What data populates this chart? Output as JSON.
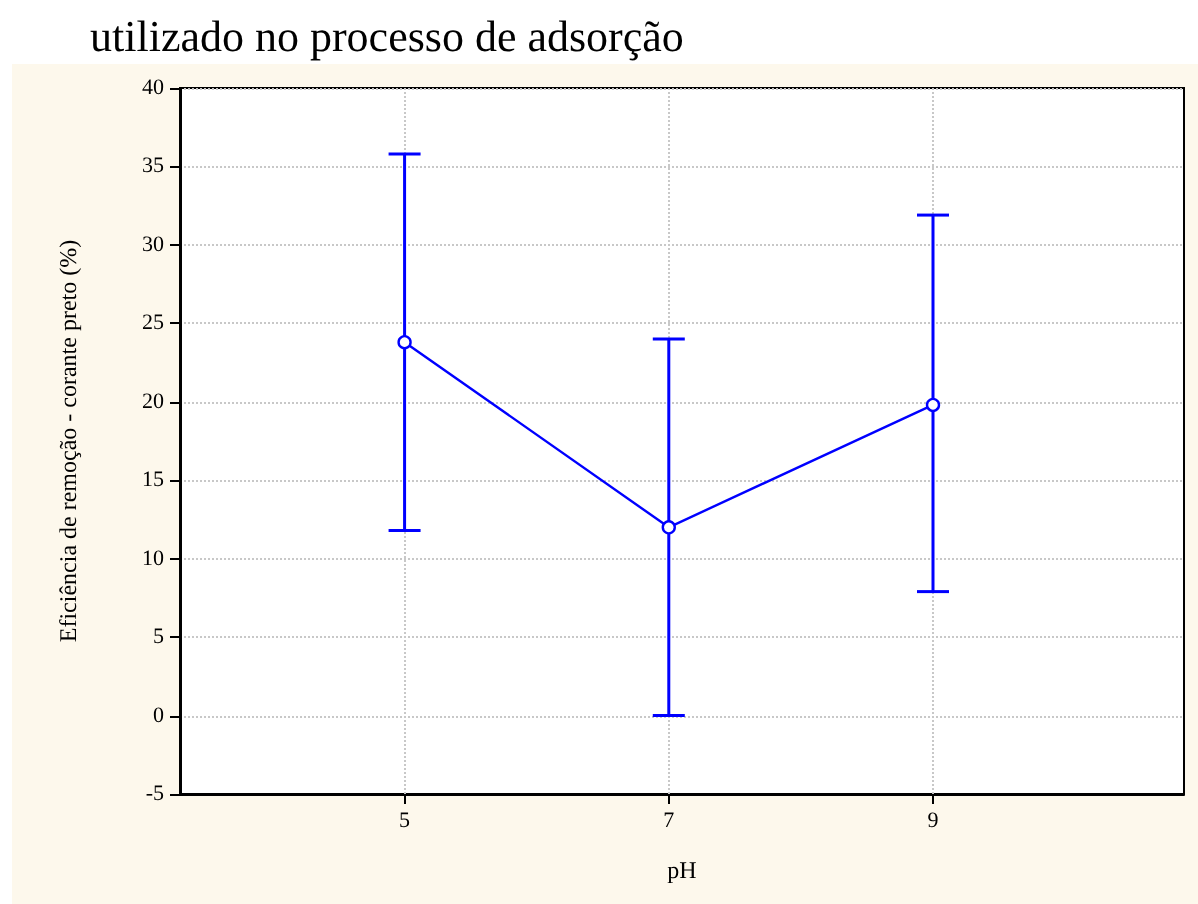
{
  "chart_data": {
    "type": "line",
    "title": "utilizado no processo de adsorção",
    "xlabel": "pH",
    "ylabel": "Eficiência de remoção - corante preto (%)",
    "x": [
      5,
      7,
      9
    ],
    "series": [
      {
        "color": "#0000ff",
        "values": [
          23.8,
          12.0,
          19.8
        ],
        "errors": [
          [
            11.8,
            35.8
          ],
          [
            0,
            24
          ],
          [
            7.9,
            31.9
          ]
        ]
      }
    ],
    "xlim": [
      3.3,
      10.9
    ],
    "xticks": [
      5,
      7,
      9
    ],
    "ylim": [
      -5,
      40
    ],
    "yticks": [
      -5,
      0,
      5,
      10,
      15,
      20,
      25,
      30,
      35,
      40
    ],
    "grid": true,
    "marker": "circle",
    "line_style": "solid"
  }
}
